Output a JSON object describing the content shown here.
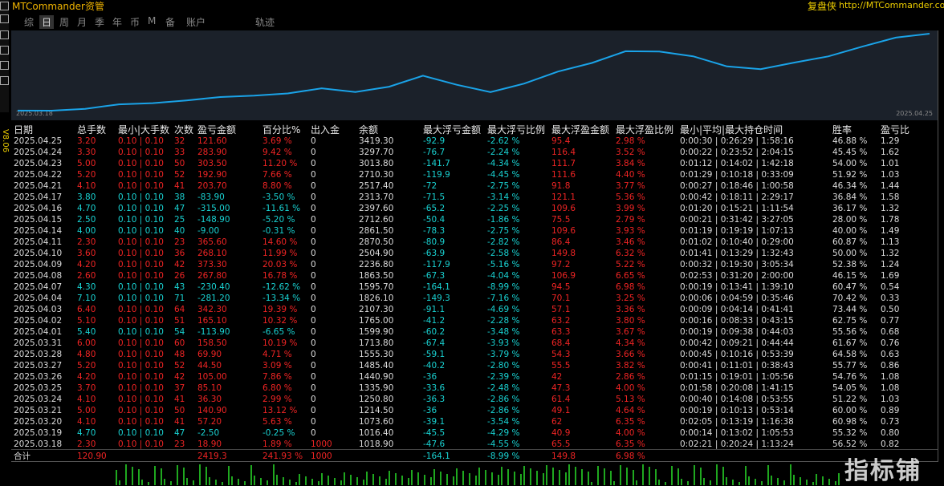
{
  "header": {
    "title": "MTCommander资管",
    "right_label": "复盘侠",
    "url": "http://MTCommander.com"
  },
  "sidebar": {
    "version": "V8.06"
  },
  "tabs": {
    "items": [
      "综",
      "日",
      "周",
      "月",
      "季",
      "年",
      "币",
      "M",
      "备",
      "账户",
      "轨迹"
    ],
    "active": 1
  },
  "chart": {
    "start_label": "2025.03.18",
    "end_label": "2025.04.25",
    "color": "#1aa3e8"
  },
  "table": {
    "columns": [
      "日期",
      "总手数",
      "最小|大手数",
      "次数",
      "盈亏金额",
      "百分比%",
      "出入金",
      "余额",
      "最大浮亏金额",
      "最大浮亏比例",
      "最大浮盈金额",
      "最大浮盈比例",
      "最小|平均|最大持仓时间",
      "胜率",
      "盈亏比"
    ],
    "rows": [
      [
        "2025.04.25",
        "3.20",
        "0.10 | 0.10",
        "32",
        "121.60",
        "3.69 %",
        "0",
        "3419.30",
        "-92.9",
        "-2.62 %",
        "95.4",
        "2.98 %",
        "0:00:30 | 0:26:29 | 1:58:16",
        "46.88 %",
        "1.29"
      ],
      [
        "2025.04.24",
        "3.30",
        "0.10 | 0.10",
        "33",
        "283.90",
        "9.42 %",
        "0",
        "3297.70",
        "-76.7",
        "-2.24 %",
        "116.4",
        "3.52 %",
        "0:00:22 | 0:23:52 | 2:04:15",
        "45.45 %",
        "1.62"
      ],
      [
        "2025.04.23",
        "5.00",
        "0.10 | 0.10",
        "50",
        "303.50",
        "11.20 %",
        "0",
        "3013.80",
        "-141.7",
        "-4.34 %",
        "111.7",
        "3.84 %",
        "0:01:12 | 0:14:02 | 1:42:18",
        "54.00 %",
        "1.01"
      ],
      [
        "2025.04.22",
        "5.20",
        "0.10 | 0.10",
        "52",
        "192.90",
        "7.66 %",
        "0",
        "2710.30",
        "-119.9",
        "-4.45 %",
        "111.6",
        "4.40 %",
        "0:01:29 | 0:10:18 | 0:33:09",
        "51.92 %",
        "1.03"
      ],
      [
        "2025.04.21",
        "4.10",
        "0.10 | 0.10",
        "41",
        "203.70",
        "8.80 %",
        "0",
        "2517.40",
        "-72",
        "-2.75 %",
        "91.8",
        "3.77 %",
        "0:00:27 | 0:18:46 | 1:00:58",
        "46.34 %",
        "1.44"
      ],
      [
        "2025.04.17",
        "3.80",
        "0.10 | 0.10",
        "38",
        "-83.90",
        "-3.50 %",
        "0",
        "2313.70",
        "-71.5",
        "-3.14 %",
        "121.1",
        "5.36 %",
        "0:00:42 | 0:18:11 | 2:29:17",
        "36.84 %",
        "1.58"
      ],
      [
        "2025.04.16",
        "4.70",
        "0.10 | 0.10",
        "47",
        "-315.00",
        "-11.61 %",
        "0",
        "2397.60",
        "-65.2",
        "-2.25 %",
        "109.6",
        "3.99 %",
        "0:01:20 | 0:15:21 | 1:11:54",
        "36.17 %",
        "1.32"
      ],
      [
        "2025.04.15",
        "2.50",
        "0.10 | 0.10",
        "25",
        "-148.90",
        "-5.20 %",
        "0",
        "2712.60",
        "-50.4",
        "-1.86 %",
        "75.5",
        "2.79 %",
        "0:00:21 | 0:31:42 | 3:27:05",
        "28.00 %",
        "1.78"
      ],
      [
        "2025.04.14",
        "4.00",
        "0.10 | 0.10",
        "40",
        "-9.00",
        "-0.31 %",
        "0",
        "2861.50",
        "-78.3",
        "-2.75 %",
        "109.6",
        "3.93 %",
        "0:01:19 | 0:19:19 | 1:07:13",
        "40.00 %",
        "1.49"
      ],
      [
        "2025.04.11",
        "2.30",
        "0.10 | 0.10",
        "23",
        "365.60",
        "14.60 %",
        "0",
        "2870.50",
        "-80.9",
        "-2.82 %",
        "86.4",
        "3.46 %",
        "0:01:02 | 0:10:40 | 0:29:00",
        "60.87 %",
        "1.13"
      ],
      [
        "2025.04.10",
        "3.60",
        "0.10 | 0.10",
        "36",
        "268.10",
        "11.99 %",
        "0",
        "2504.90",
        "-63.9",
        "-2.58 %",
        "149.8",
        "6.32 %",
        "0:01:41 | 0:13:29 | 1:32:43",
        "50.00 %",
        "1.32"
      ],
      [
        "2025.04.09",
        "4.20",
        "0.10 | 0.10",
        "42",
        "373.30",
        "20.03 %",
        "0",
        "2236.80",
        "-117.9",
        "-5.16 %",
        "97.2",
        "5.22 %",
        "0:00:32 | 0:19:30 | 3:05:34",
        "52.38 %",
        "1.24"
      ],
      [
        "2025.04.08",
        "2.60",
        "0.10 | 0.10",
        "26",
        "267.80",
        "16.78 %",
        "0",
        "1863.50",
        "-67.3",
        "-4.04 %",
        "106.9",
        "6.65 %",
        "0:02:53 | 0:31:20 | 2:00:00",
        "46.15 %",
        "1.69"
      ],
      [
        "2025.04.07",
        "4.30",
        "0.10 | 0.10",
        "43",
        "-230.40",
        "-12.62 %",
        "0",
        "1595.70",
        "-164.1",
        "-8.99 %",
        "94.5",
        "6.98 %",
        "0:00:19 | 0:13:41 | 1:39:10",
        "60.47 %",
        "0.54"
      ],
      [
        "2025.04.04",
        "7.10",
        "0.10 | 0.10",
        "71",
        "-281.20",
        "-13.34 %",
        "0",
        "1826.10",
        "-149.3",
        "-7.16 %",
        "70.1",
        "3.25 %",
        "0:00:06 | 0:04:59 | 0:35:46",
        "70.42 %",
        "0.33"
      ],
      [
        "2025.04.03",
        "6.40",
        "0.10 | 0.10",
        "64",
        "342.30",
        "19.39 %",
        "0",
        "2107.30",
        "-91.1",
        "-4.69 %",
        "57.1",
        "3.36 %",
        "0:00:09 | 0:04:14 | 0:41:41",
        "73.44 %",
        "0.50"
      ],
      [
        "2025.04.02",
        "5.10",
        "0.10 | 0.10",
        "51",
        "165.10",
        "10.32 %",
        "0",
        "1765.00",
        "-41.2",
        "-2.28 %",
        "63.2",
        "3.80 %",
        "0:00:16 | 0:08:33 | 0:43:15",
        "62.75 %",
        "0.77"
      ],
      [
        "2025.04.01",
        "5.40",
        "0.10 | 0.10",
        "54",
        "-113.90",
        "-6.65 %",
        "0",
        "1599.90",
        "-60.2",
        "-3.48 %",
        "63.3",
        "3.67 %",
        "0:00:19 | 0:09:38 | 0:44:03",
        "55.56 %",
        "0.68"
      ],
      [
        "2025.03.31",
        "6.00",
        "0.10 | 0.10",
        "60",
        "158.50",
        "10.19 %",
        "0",
        "1713.80",
        "-67.4",
        "-3.93 %",
        "68.4",
        "4.34 %",
        "0:00:42 | 0:09:21 | 0:44:44",
        "61.67 %",
        "0.76"
      ],
      [
        "2025.03.28",
        "4.80",
        "0.10 | 0.10",
        "48",
        "69.90",
        "4.71 %",
        "0",
        "1555.30",
        "-59.1",
        "-3.79 %",
        "54.3",
        "3.66 %",
        "0:00:45 | 0:10:16 | 0:53:39",
        "64.58 %",
        "0.63"
      ],
      [
        "2025.03.27",
        "5.20",
        "0.10 | 0.10",
        "52",
        "44.50",
        "3.09 %",
        "0",
        "1485.40",
        "-40.2",
        "-2.80 %",
        "55.5",
        "3.82 %",
        "0:00:41 | 0:11:01 | 0:38:43",
        "55.77 %",
        "0.86"
      ],
      [
        "2025.03.26",
        "4.20",
        "0.10 | 0.10",
        "42",
        "105.00",
        "7.86 %",
        "0",
        "1440.90",
        "-36",
        "-2.39 %",
        "42",
        "2.86 %",
        "0:01:15 | 0:19:01 | 1:05:56",
        "54.76 %",
        "1.08"
      ],
      [
        "2025.03.25",
        "3.70",
        "0.10 | 0.10",
        "37",
        "85.10",
        "6.80 %",
        "0",
        "1335.90",
        "-33.6",
        "-2.48 %",
        "47.3",
        "4.00 %",
        "0:01:58 | 0:20:08 | 1:41:15",
        "54.05 %",
        "1.08"
      ],
      [
        "2025.03.24",
        "4.10",
        "0.10 | 0.10",
        "41",
        "36.30",
        "2.99 %",
        "0",
        "1250.80",
        "-36.3",
        "-2.86 %",
        "61.4",
        "5.13 %",
        "0:00:40 | 0:14:08 | 0:53:55",
        "51.22 %",
        "1.03"
      ],
      [
        "2025.03.21",
        "5.00",
        "0.10 | 0.10",
        "50",
        "140.90",
        "13.12 %",
        "0",
        "1214.50",
        "-36",
        "-2.86 %",
        "49.1",
        "4.64 %",
        "0:00:19 | 0:10:13 | 0:53:14",
        "60.00 %",
        "0.89"
      ],
      [
        "2025.03.20",
        "4.10",
        "0.10 | 0.10",
        "41",
        "57.20",
        "5.63 %",
        "0",
        "1073.60",
        "-39.1",
        "-3.54 %",
        "62",
        "6.35 %",
        "0:02:05 | 0:13:19 | 1:16:38",
        "60.98 %",
        "0.73"
      ],
      [
        "2025.03.19",
        "4.70",
        "0.10 | 0.10",
        "47",
        "-2.50",
        "-0.25 %",
        "0",
        "1016.40",
        "-45.5",
        "-4.29 %",
        "40.9",
        "4.00 %",
        "0:00:14 | 0:13:02 | 1:05:53",
        "55.32 %",
        "0.80"
      ],
      [
        "2025.03.18",
        "2.30",
        "0.10 | 0.10",
        "23",
        "18.90",
        "1.89 %",
        "1000",
        "1018.90",
        "-47.6",
        "-4.55 %",
        "65.5",
        "6.35 %",
        "0:02:21 | 0:20:24 | 1:13:24",
        "56.52 %",
        "0.82"
      ]
    ],
    "total": {
      "label": "合计",
      "cells": {
        "1": "120.90",
        "4": "2419.3",
        "5": "241.93 %",
        "6": "1000",
        "8": "-164.1",
        "9": "-8.99 %",
        "10": "149.8",
        "11": "6.98 %"
      }
    }
  },
  "watermark": "指标铺"
}
